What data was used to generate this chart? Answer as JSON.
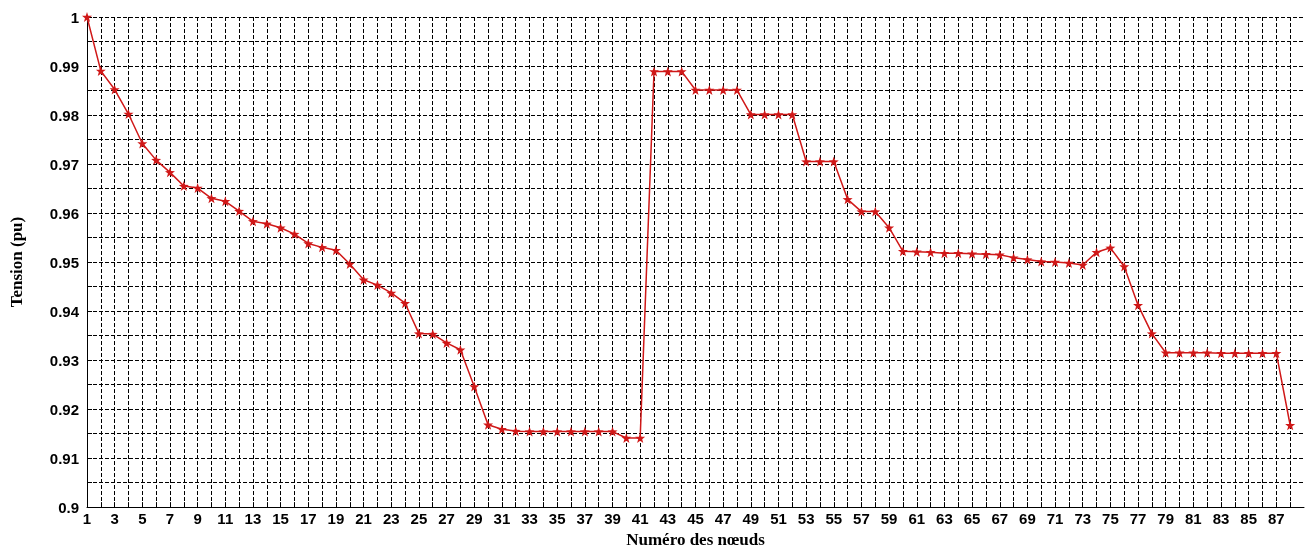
{
  "chart_data": {
    "type": "line",
    "xlabel": "Numéro des nœuds",
    "ylabel": "Tension (pu)",
    "xlim": [
      1,
      89
    ],
    "ylim": [
      0.9,
      1
    ],
    "xticks": [
      1,
      {
        "value": 2,
        "label": null
      },
      3,
      {
        "value": 4,
        "label": null
      },
      5,
      {
        "value": 6,
        "label": null
      },
      7,
      {
        "value": 8,
        "label": null
      },
      9,
      {
        "value": 10,
        "label": null
      },
      11,
      {
        "value": 12,
        "label": null
      },
      13,
      {
        "value": 14,
        "label": null
      },
      15,
      {
        "value": 16,
        "label": null
      },
      17,
      {
        "value": 18,
        "label": null
      },
      19,
      {
        "value": 20,
        "label": null
      },
      21,
      {
        "value": 22,
        "label": null
      },
      23,
      {
        "value": 24,
        "label": null
      },
      25,
      {
        "value": 26,
        "label": null
      },
      27,
      {
        "value": 28,
        "label": null
      },
      29,
      {
        "value": 30,
        "label": null
      },
      31,
      {
        "value": 32,
        "label": null
      },
      33,
      {
        "value": 34,
        "label": null
      },
      35,
      {
        "value": 36,
        "label": null
      },
      37,
      {
        "value": 38,
        "label": null
      },
      39,
      {
        "value": 40,
        "label": null
      },
      41,
      {
        "value": 42,
        "label": null
      },
      43,
      {
        "value": 44,
        "label": null
      },
      45,
      {
        "value": 46,
        "label": null
      },
      47,
      {
        "value": 48,
        "label": null
      },
      49,
      {
        "value": 50,
        "label": null
      },
      51,
      {
        "value": 52,
        "label": null
      },
      53,
      {
        "value": 54,
        "label": null
      },
      55,
      {
        "value": 56,
        "label": null
      },
      57,
      {
        "value": 58,
        "label": null
      },
      59,
      {
        "value": 60,
        "label": null
      },
      61,
      {
        "value": 62,
        "label": null
      },
      63,
      {
        "value": 64,
        "label": null
      },
      65,
      {
        "value": 66,
        "label": null
      },
      67,
      {
        "value": 68,
        "label": null
      },
      69,
      {
        "value": 70,
        "label": null
      },
      71,
      {
        "value": 72,
        "label": null
      },
      73,
      {
        "value": 74,
        "label": null
      },
      75,
      {
        "value": 76,
        "label": null
      },
      77,
      {
        "value": 78,
        "label": null
      },
      79,
      {
        "value": 80,
        "label": null
      },
      81,
      {
        "value": 82,
        "label": null
      },
      83,
      {
        "value": 84,
        "label": null
      },
      85,
      {
        "value": 86,
        "label": null
      },
      87,
      {
        "value": 88,
        "label": null
      }
    ],
    "yticks": [
      0.9,
      {
        "value": 0.905,
        "label": null
      },
      0.91,
      {
        "value": 0.915,
        "label": null
      },
      0.92,
      {
        "value": 0.925,
        "label": null
      },
      0.93,
      {
        "value": 0.935,
        "label": null
      },
      0.94,
      {
        "value": 0.945,
        "label": null
      },
      0.95,
      {
        "value": 0.955,
        "label": null
      },
      0.96,
      {
        "value": 0.965,
        "label": null
      },
      0.97,
      {
        "value": 0.975,
        "label": null
      },
      0.98,
      {
        "value": 0.985,
        "label": null
      },
      0.99,
      {
        "value": 0.995,
        "label": null
      },
      1
    ],
    "grid": true,
    "marker": "star",
    "line_style": "solid",
    "x": [
      1,
      2,
      3,
      4,
      5,
      6,
      7,
      8,
      9,
      10,
      11,
      12,
      13,
      14,
      15,
      16,
      17,
      18,
      19,
      20,
      21,
      22,
      23,
      24,
      25,
      26,
      27,
      28,
      29,
      30,
      31,
      32,
      33,
      34,
      35,
      36,
      37,
      38,
      39,
      40,
      41,
      42,
      43,
      44,
      45,
      46,
      47,
      48,
      49,
      50,
      51,
      52,
      53,
      54,
      55,
      56,
      57,
      58,
      59,
      60,
      61,
      62,
      63,
      64,
      65,
      66,
      67,
      68,
      69,
      70,
      71,
      72,
      73,
      74,
      75,
      76,
      77,
      78,
      79,
      80,
      81,
      82,
      83,
      84,
      85,
      86,
      87,
      88
    ],
    "series": [
      {
        "color": "#d01818",
        "values": [
          1.0,
          0.989,
          0.9852,
          0.9802,
          0.9742,
          0.9708,
          0.9683,
          0.9655,
          0.9651,
          0.963,
          0.9624,
          0.9604,
          0.9583,
          0.9578,
          0.957,
          0.9557,
          0.9538,
          0.953,
          0.9524,
          0.9496,
          0.9464,
          0.9453,
          0.9437,
          0.9416,
          0.9354,
          0.9353,
          0.9335,
          0.9321,
          0.9246,
          0.9168,
          0.9159,
          0.9155,
          0.9154,
          0.9154,
          0.9154,
          0.9154,
          0.9154,
          0.9154,
          0.9154,
          0.9141,
          0.9141,
          0.9889,
          0.9889,
          0.9889,
          0.9851,
          0.9851,
          0.9851,
          0.9851,
          0.9801,
          0.9801,
          0.9801,
          0.9801,
          0.9705,
          0.9705,
          0.9705,
          0.9628,
          0.9603,
          0.9603,
          0.957,
          0.9522,
          0.9521,
          0.952,
          0.9518,
          0.9518,
          0.9517,
          0.9516,
          0.9515,
          0.9509,
          0.9505,
          0.9501,
          0.95,
          0.9498,
          0.9494,
          0.952,
          0.9529,
          0.9491,
          0.9412,
          0.9354,
          0.9315,
          0.9315,
          0.9315,
          0.9315,
          0.9314,
          0.9314,
          0.9314,
          0.9314,
          0.9314,
          0.9167
        ]
      }
    ]
  }
}
